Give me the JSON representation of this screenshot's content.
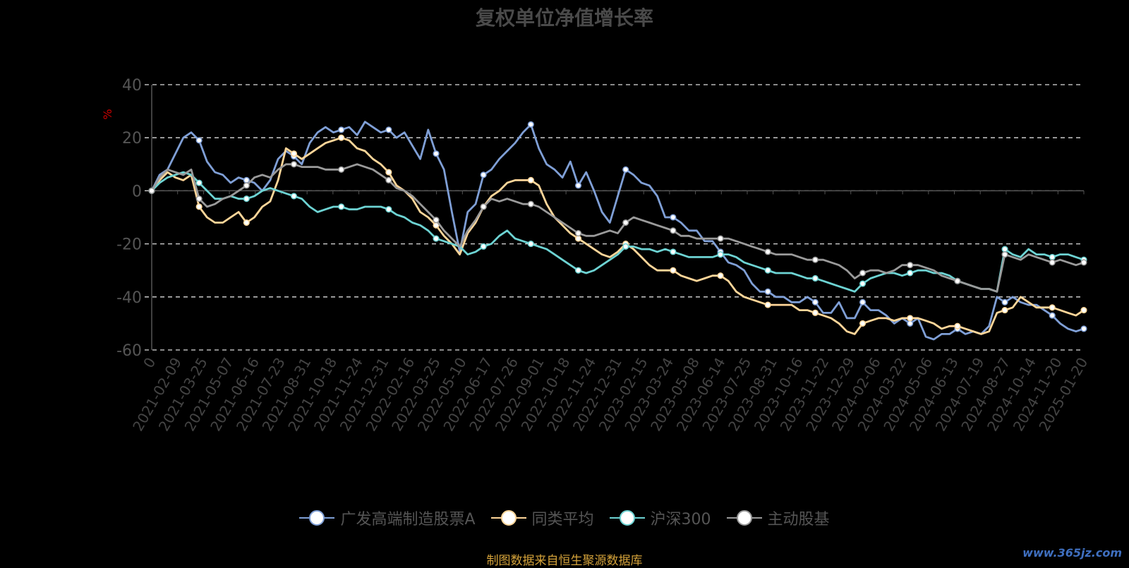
{
  "colors": {
    "background": "#000000",
    "fund": "#7f9fd6",
    "peer": "#ffd699",
    "csi300": "#6dd3d3",
    "active": "#9a9a9a",
    "source": "#d4a23a",
    "watermark": "#3f6fbf"
  },
  "chart_data": {
    "type": "line",
    "title": "复权单位净值增长率",
    "ylabel": "%",
    "ylim": [
      -60,
      40
    ],
    "yticks": [
      40,
      20,
      0,
      -20,
      -40,
      -60
    ],
    "grid": true,
    "legend_position": "bottom-center",
    "x_tick_labels": [
      "0",
      "2021-02-09",
      "2021-03-25",
      "2021-05-07",
      "2021-06-16",
      "2021-07-23",
      "2021-08-31",
      "2021-10-18",
      "2021-11-24",
      "2021-12-31",
      "2022-02-16",
      "2022-03-25",
      "2022-05-10",
      "2022-06-17",
      "2022-07-26",
      "2022-09-01",
      "2022-10-18",
      "2022-11-24",
      "2022-12-31",
      "2023-02-15",
      "2023-03-24",
      "2023-05-08",
      "2023-06-14",
      "2023-07-25",
      "2023-08-31",
      "2023-10-16",
      "2023-11-22",
      "2023-12-29",
      "2024-02-06",
      "2024-03-22",
      "2024-05-06",
      "2024-06-13",
      "2024-07-19",
      "2024-08-27",
      "2024-10-14",
      "2024-11-20",
      "2025-01-20"
    ],
    "series": [
      {
        "name": "广发高端制造股票A",
        "color": "#7f9fd6",
        "values": [
          0,
          6,
          8,
          14,
          20,
          22,
          19,
          11,
          7,
          6,
          3,
          5,
          4,
          3,
          0,
          4,
          12,
          15,
          13,
          10,
          18,
          22,
          24,
          22,
          23,
          24,
          21,
          26,
          24,
          22,
          23,
          20,
          22,
          17,
          12,
          23,
          14,
          8,
          -8,
          -23,
          -8,
          -5,
          6,
          8,
          12,
          15,
          18,
          22,
          25,
          16,
          10,
          8,
          5,
          11,
          2,
          7,
          0,
          -8,
          -12,
          -2,
          8,
          6,
          3,
          2,
          -2,
          -10,
          -10,
          -12,
          -15,
          -15,
          -19,
          -19,
          -23,
          -27,
          -28,
          -30,
          -35,
          -38,
          -38,
          -40,
          -40,
          -42,
          -42,
          -40,
          -42,
          -46,
          -46,
          -42,
          -48,
          -48,
          -42,
          -45,
          -45,
          -47,
          -50,
          -48,
          -50,
          -48,
          -55,
          -56,
          -54,
          -54,
          -52,
          -54,
          -53,
          -54,
          -51,
          -40,
          -42,
          -40,
          -42,
          -43,
          -43,
          -45,
          -47,
          -50,
          -52,
          -53,
          -52
        ]
      },
      {
        "name": "同类平均",
        "color": "#ffd699",
        "values": [
          0,
          4,
          7,
          5,
          4,
          6,
          -6,
          -10,
          -12,
          -12,
          -10,
          -8,
          -12,
          -10,
          -6,
          -4,
          4,
          16,
          14,
          12,
          14,
          16,
          18,
          19,
          20,
          19,
          16,
          15,
          12,
          10,
          7,
          2,
          0,
          -3,
          -8,
          -10,
          -13,
          -17,
          -20,
          -24,
          -16,
          -12,
          -6,
          -2,
          0,
          3,
          4,
          4,
          4,
          2,
          -5,
          -10,
          -13,
          -16,
          -18,
          -20,
          -22,
          -24,
          -25,
          -23,
          -20,
          -22,
          -25,
          -28,
          -30,
          -30,
          -30,
          -32,
          -33,
          -34,
          -33,
          -32,
          -32,
          -34,
          -38,
          -40,
          -41,
          -42,
          -43,
          -43,
          -43,
          -43,
          -45,
          -45,
          -46,
          -47,
          -48,
          -50,
          -53,
          -54,
          -50,
          -49,
          -48,
          -48,
          -49,
          -48,
          -48,
          -48,
          -49,
          -50,
          -52,
          -51,
          -51,
          -52,
          -53,
          -54,
          -53,
          -46,
          -45,
          -44,
          -40,
          -42,
          -44,
          -44,
          -44,
          -45,
          -46,
          -47,
          -45
        ]
      },
      {
        "name": "沪深300",
        "color": "#6dd3d3",
        "values": [
          0,
          3,
          5,
          6,
          7,
          6,
          3,
          0,
          -3,
          -3,
          -2,
          -3,
          -3,
          -2,
          0,
          1,
          0,
          -1,
          -2,
          -3,
          -6,
          -8,
          -7,
          -6,
          -6,
          -7,
          -7,
          -6,
          -6,
          -6,
          -7,
          -9,
          -10,
          -12,
          -13,
          -15,
          -18,
          -19,
          -20,
          -21,
          -24,
          -23,
          -21,
          -20,
          -17,
          -15,
          -18,
          -19,
          -20,
          -21,
          -22,
          -24,
          -26,
          -28,
          -30,
          -31,
          -30,
          -28,
          -26,
          -24,
          -21,
          -21,
          -22,
          -22,
          -23,
          -22,
          -23,
          -24,
          -25,
          -25,
          -25,
          -25,
          -24,
          -24,
          -25,
          -27,
          -28,
          -29,
          -30,
          -31,
          -31,
          -31,
          -32,
          -33,
          -33,
          -34,
          -35,
          -36,
          -37,
          -38,
          -35,
          -33,
          -32,
          -31,
          -31,
          -32,
          -31,
          -30,
          -30,
          -31,
          -31,
          -32,
          -34,
          -35,
          -36,
          -37,
          -37,
          -38,
          -22,
          -24,
          -25,
          -22,
          -24,
          -24,
          -25,
          -24,
          -24,
          -25,
          -26
        ]
      },
      {
        "name": "主动股基",
        "color": "#9a9a9a",
        "values": [
          0,
          5,
          8,
          7,
          6,
          8,
          -3,
          -6,
          -5,
          -3,
          -2,
          0,
          2,
          5,
          6,
          5,
          8,
          10,
          10,
          9,
          9,
          9,
          8,
          8,
          8,
          9,
          10,
          9,
          8,
          6,
          4,
          1,
          0,
          -2,
          -5,
          -8,
          -11,
          -15,
          -18,
          -21,
          -15,
          -11,
          -6,
          -3,
          -4,
          -3,
          -4,
          -5,
          -5,
          -6,
          -8,
          -10,
          -12,
          -14,
          -16,
          -17,
          -17,
          -16,
          -15,
          -16,
          -12,
          -10,
          -11,
          -12,
          -13,
          -14,
          -15,
          -17,
          -17,
          -18,
          -18,
          -18,
          -18,
          -18,
          -19,
          -20,
          -21,
          -22,
          -23,
          -24,
          -24,
          -24,
          -25,
          -26,
          -26,
          -26,
          -27,
          -28,
          -30,
          -33,
          -31,
          -30,
          -30,
          -31,
          -30,
          -28,
          -28,
          -28,
          -29,
          -30,
          -32,
          -33,
          -34,
          -35,
          -36,
          -37,
          -37,
          -38,
          -24,
          -25,
          -26,
          -24,
          -25,
          -26,
          -27,
          -26,
          -27,
          -28,
          -27
        ]
      }
    ]
  },
  "source_note": "制图数据来自恒生聚源数据库",
  "watermark": "www.365jz.com"
}
